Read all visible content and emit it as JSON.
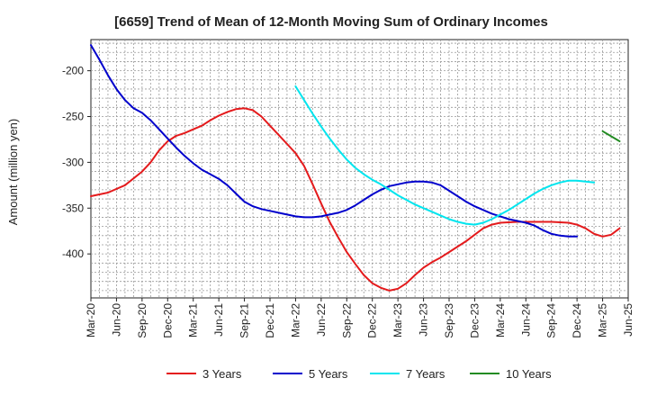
{
  "chart_data": {
    "type": "line",
    "title": "[6659]  Trend of Mean of 12-Month Moving Sum of Ordinary Incomes",
    "xlabel": "",
    "ylabel": "Amount (million yen)",
    "ylim": [
      -448,
      -166
    ],
    "y_ticks": [
      -200,
      -250,
      -300,
      -350,
      -400
    ],
    "x_tick_labels": [
      "Mar-20",
      "Jun-20",
      "Sep-20",
      "Dec-20",
      "Mar-21",
      "Jun-21",
      "Sep-21",
      "Dec-21",
      "Mar-22",
      "Jun-22",
      "Sep-22",
      "Dec-22",
      "Mar-23",
      "Jun-23",
      "Sep-23",
      "Dec-23",
      "Mar-24",
      "Jun-24",
      "Sep-24",
      "Dec-24",
      "Mar-25",
      "Jun-25"
    ],
    "x_range_months": [
      0,
      63
    ],
    "grid": true,
    "legend_position": "bottom",
    "series": [
      {
        "name": "3 Years",
        "color": "#e41a1c",
        "points": [
          [
            0,
            -337
          ],
          [
            2,
            -333
          ],
          [
            4,
            -325
          ],
          [
            6,
            -310
          ],
          [
            7,
            -300
          ],
          [
            8,
            -287
          ],
          [
            9,
            -277
          ],
          [
            10,
            -271
          ],
          [
            11,
            -268
          ],
          [
            12,
            -264
          ],
          [
            13,
            -260
          ],
          [
            14,
            -254
          ],
          [
            15,
            -249
          ],
          [
            16,
            -245
          ],
          [
            17,
            -242
          ],
          [
            18,
            -241
          ],
          [
            19,
            -243
          ],
          [
            20,
            -250
          ],
          [
            21,
            -260
          ],
          [
            22,
            -270
          ],
          [
            23,
            -280
          ],
          [
            24,
            -290
          ],
          [
            25,
            -304
          ],
          [
            26,
            -324
          ],
          [
            27,
            -345
          ],
          [
            28,
            -365
          ],
          [
            29,
            -382
          ],
          [
            30,
            -398
          ],
          [
            31,
            -411
          ],
          [
            32,
            -423
          ],
          [
            33,
            -432
          ],
          [
            34,
            -437
          ],
          [
            35,
            -440
          ],
          [
            36,
            -438
          ],
          [
            37,
            -432
          ],
          [
            38,
            -423
          ],
          [
            39,
            -415
          ],
          [
            40,
            -409
          ],
          [
            41,
            -404
          ],
          [
            42,
            -398
          ],
          [
            43,
            -392
          ],
          [
            44,
            -386
          ],
          [
            45,
            -379
          ],
          [
            46,
            -372
          ],
          [
            47,
            -368
          ],
          [
            48,
            -366
          ],
          [
            50,
            -365
          ],
          [
            52,
            -365
          ],
          [
            54,
            -365
          ],
          [
            56,
            -366
          ],
          [
            57,
            -368
          ],
          [
            58,
            -372
          ],
          [
            59,
            -378
          ],
          [
            60,
            -381
          ],
          [
            61,
            -379
          ],
          [
            62,
            -372
          ]
        ]
      },
      {
        "name": "5 Years",
        "color": "#0000cc",
        "points": [
          [
            0,
            -172
          ],
          [
            1,
            -188
          ],
          [
            2,
            -205
          ],
          [
            3,
            -220
          ],
          [
            4,
            -232
          ],
          [
            5,
            -241
          ],
          [
            6,
            -246
          ],
          [
            7,
            -254
          ],
          [
            8,
            -264
          ],
          [
            9,
            -274
          ],
          [
            10,
            -284
          ],
          [
            11,
            -293
          ],
          [
            12,
            -301
          ],
          [
            13,
            -308
          ],
          [
            14,
            -313
          ],
          [
            15,
            -318
          ],
          [
            16,
            -325
          ],
          [
            17,
            -334
          ],
          [
            18,
            -343
          ],
          [
            19,
            -348
          ],
          [
            20,
            -351
          ],
          [
            21,
            -353
          ],
          [
            22,
            -355
          ],
          [
            23,
            -357
          ],
          [
            24,
            -359
          ],
          [
            25,
            -360
          ],
          [
            26,
            -360
          ],
          [
            27,
            -359
          ],
          [
            28,
            -357
          ],
          [
            29,
            -355
          ],
          [
            30,
            -352
          ],
          [
            31,
            -347
          ],
          [
            32,
            -341
          ],
          [
            33,
            -335
          ],
          [
            34,
            -330
          ],
          [
            35,
            -326
          ],
          [
            36,
            -324
          ],
          [
            37,
            -322
          ],
          [
            38,
            -321
          ],
          [
            39,
            -321
          ],
          [
            40,
            -322
          ],
          [
            41,
            -325
          ],
          [
            42,
            -331
          ],
          [
            43,
            -337
          ],
          [
            44,
            -343
          ],
          [
            45,
            -348
          ],
          [
            46,
            -352
          ],
          [
            47,
            -356
          ],
          [
            48,
            -359
          ],
          [
            49,
            -362
          ],
          [
            50,
            -364
          ],
          [
            51,
            -366
          ],
          [
            52,
            -369
          ],
          [
            53,
            -374
          ],
          [
            54,
            -378
          ],
          [
            55,
            -380
          ],
          [
            56,
            -381
          ],
          [
            57,
            -381
          ]
        ]
      },
      {
        "name": "7 Years",
        "color": "#00e5ee",
        "points": [
          [
            24,
            -217
          ],
          [
            25,
            -232
          ],
          [
            26,
            -247
          ],
          [
            27,
            -261
          ],
          [
            28,
            -274
          ],
          [
            29,
            -286
          ],
          [
            30,
            -297
          ],
          [
            31,
            -306
          ],
          [
            32,
            -313
          ],
          [
            33,
            -319
          ],
          [
            34,
            -324
          ],
          [
            35,
            -330
          ],
          [
            36,
            -336
          ],
          [
            37,
            -341
          ],
          [
            38,
            -346
          ],
          [
            39,
            -350
          ],
          [
            40,
            -354
          ],
          [
            41,
            -358
          ],
          [
            42,
            -362
          ],
          [
            43,
            -365
          ],
          [
            44,
            -367
          ],
          [
            45,
            -368
          ],
          [
            46,
            -366
          ],
          [
            47,
            -362
          ],
          [
            48,
            -357
          ],
          [
            49,
            -352
          ],
          [
            50,
            -346
          ],
          [
            51,
            -340
          ],
          [
            52,
            -334
          ],
          [
            53,
            -329
          ],
          [
            54,
            -325
          ],
          [
            55,
            -322
          ],
          [
            56,
            -320
          ],
          [
            57,
            -320
          ],
          [
            58,
            -321
          ],
          [
            59,
            -322
          ]
        ]
      },
      {
        "name": "10 Years",
        "color": "#228b22",
        "points": [
          [
            60,
            -266
          ],
          [
            62,
            -277
          ]
        ]
      }
    ]
  }
}
